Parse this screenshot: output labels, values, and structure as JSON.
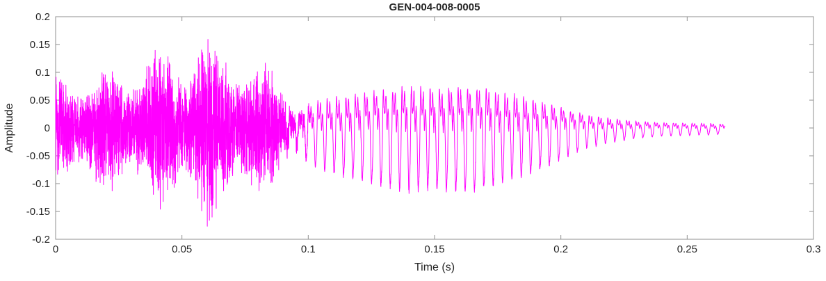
{
  "chart_data": {
    "type": "line",
    "title": "GEN-004-008-0005",
    "xlabel": "Time (s)",
    "ylabel": "Amplitude",
    "xlim": [
      0,
      0.3
    ],
    "ylim": [
      -0.2,
      0.2
    ],
    "x_ticks": [
      0,
      0.05,
      0.1,
      0.15,
      0.2,
      0.25,
      0.3
    ],
    "x_tick_labels": [
      "0",
      "0.05",
      "0.1",
      "0.15",
      "0.2",
      "0.25",
      "0.3"
    ],
    "y_ticks": [
      -0.2,
      -0.15,
      -0.1,
      -0.05,
      0,
      0.05,
      0.1,
      0.15,
      0.2
    ],
    "y_tick_labels": [
      "-0.2",
      "-0.15",
      "-0.1",
      "-0.05",
      "0",
      "0.05",
      "0.1",
      "0.15",
      "0.2"
    ],
    "grid": false,
    "legend": null,
    "colors": {
      "series": "#FF00FF",
      "text": "#262626",
      "axes": "#8F8F8F"
    },
    "waveform": {
      "description": "speech-like magenta waveform: dense noisy burst 0 to 0.095 s peaking near +0.19/-0.17, quasi-periodic voiced segment 0.095 to 0.225 s with envelope rising to about 0.11 near 0.14-0.17 s, decaying low-amplitude ripple tail ending near 0.265 s",
      "duration": 0.265,
      "noise_segment": {
        "start": 0,
        "end": 0.095
      },
      "voiced_segment": {
        "start": 0.095,
        "end": 0.225,
        "fundamental_hz": 270
      },
      "tail_segment": {
        "start": 0.225,
        "end": 0.265
      },
      "envelope": [
        [
          0,
          0.1
        ],
        [
          0.005,
          0.12
        ],
        [
          0.015,
          0.11
        ],
        [
          0.03,
          0.14
        ],
        [
          0.04,
          0.15
        ],
        [
          0.05,
          0.16
        ],
        [
          0.06,
          0.19
        ],
        [
          0.065,
          0.15
        ],
        [
          0.07,
          0.17
        ],
        [
          0.075,
          0.16
        ],
        [
          0.08,
          0.14
        ],
        [
          0.085,
          0.12
        ],
        [
          0.09,
          0.1
        ],
        [
          0.095,
          0.07
        ],
        [
          0.1,
          0.07
        ],
        [
          0.11,
          0.08
        ],
        [
          0.12,
          0.09
        ],
        [
          0.13,
          0.1
        ],
        [
          0.14,
          0.11
        ],
        [
          0.15,
          0.105
        ],
        [
          0.16,
          0.11
        ],
        [
          0.17,
          0.105
        ],
        [
          0.18,
          0.09
        ],
        [
          0.19,
          0.075
        ],
        [
          0.2,
          0.055
        ],
        [
          0.21,
          0.035
        ],
        [
          0.215,
          0.03
        ],
        [
          0.22,
          0.025
        ],
        [
          0.23,
          0.018
        ],
        [
          0.24,
          0.014
        ],
        [
          0.25,
          0.013
        ],
        [
          0.26,
          0.012
        ],
        [
          0.265,
          0.01
        ]
      ],
      "samples": 6000,
      "seed": 12345
    }
  }
}
